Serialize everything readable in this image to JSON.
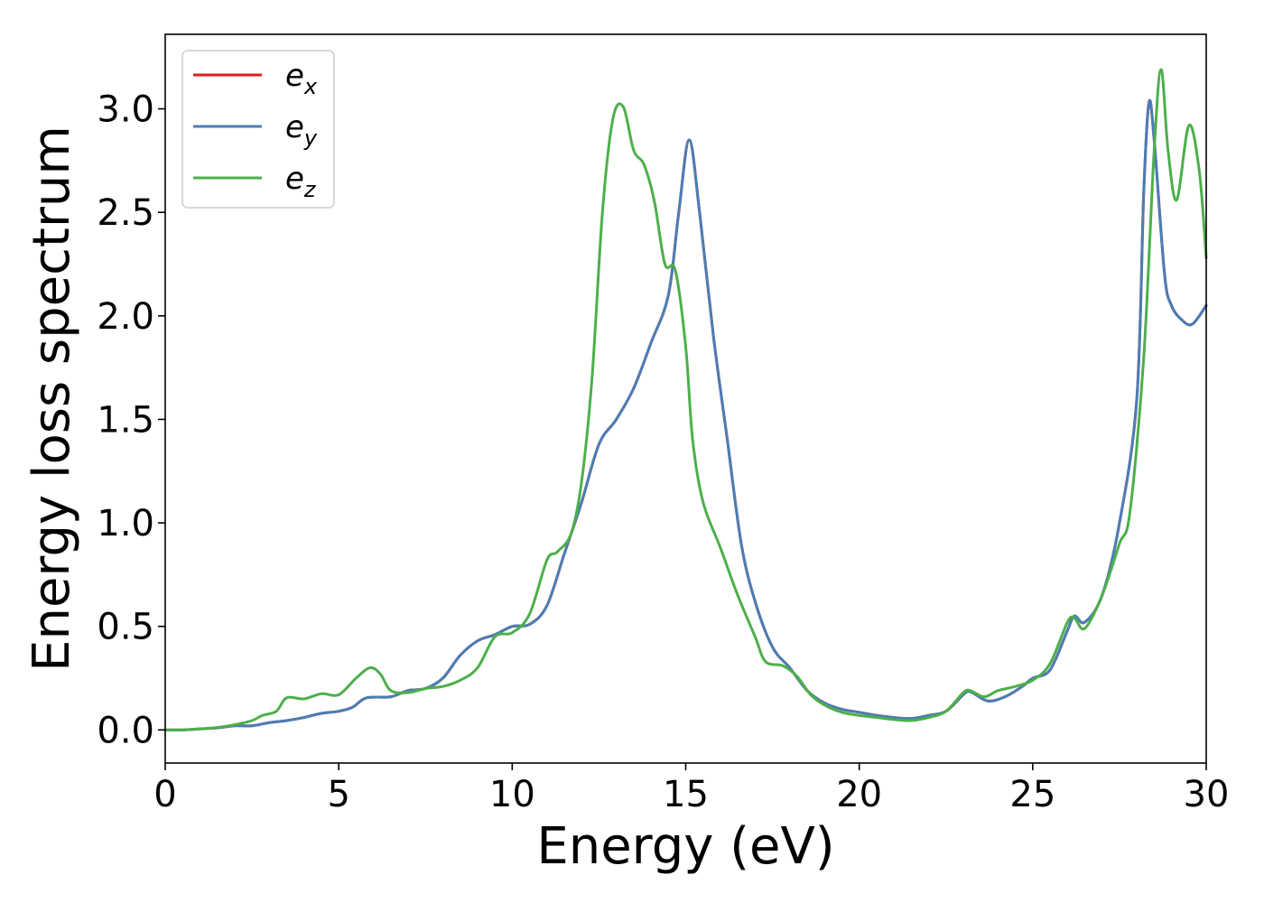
{
  "chart_data": {
    "type": "line",
    "title": "",
    "xlabel": "Energy (eV)",
    "ylabel": "Energy loss spectrum",
    "xlim": [
      0,
      30
    ],
    "ylim": [
      -0.16,
      3.36
    ],
    "xticks": [
      0,
      5,
      10,
      15,
      20,
      25,
      30
    ],
    "xtick_labels": [
      "0",
      "5",
      "10",
      "15",
      "20",
      "25",
      "30"
    ],
    "yticks": [
      0.0,
      0.5,
      1.0,
      1.5,
      2.0,
      2.5,
      3.0
    ],
    "ytick_labels": [
      "0.0",
      "0.5",
      "1.0",
      "1.5",
      "2.0",
      "2.5",
      "3.0"
    ],
    "grid": false,
    "legend_position": "top-left",
    "series": [
      {
        "name": "e_x",
        "legend_base": "e",
        "legend_sub": "x",
        "color": "#e41a1c",
        "points": [
          [
            0,
            0.0
          ],
          [
            0.5,
            0.0
          ],
          [
            1,
            0.005
          ],
          [
            1.5,
            0.01
          ],
          [
            2,
            0.02
          ],
          [
            2.5,
            0.02
          ],
          [
            3,
            0.035
          ],
          [
            3.5,
            0.045
          ],
          [
            4,
            0.06
          ],
          [
            4.5,
            0.08
          ],
          [
            5,
            0.09
          ],
          [
            5.4,
            0.11
          ],
          [
            5.8,
            0.155
          ],
          [
            6.5,
            0.16
          ],
          [
            7,
            0.19
          ],
          [
            7.5,
            0.2
          ],
          [
            8,
            0.25
          ],
          [
            8.5,
            0.36
          ],
          [
            9,
            0.43
          ],
          [
            9.5,
            0.46
          ],
          [
            10,
            0.5
          ],
          [
            10.5,
            0.51
          ],
          [
            11,
            0.6
          ],
          [
            11.5,
            0.85
          ],
          [
            12,
            1.1
          ],
          [
            12.5,
            1.38
          ],
          [
            13,
            1.5
          ],
          [
            13.5,
            1.65
          ],
          [
            14,
            1.87
          ],
          [
            14.5,
            2.1
          ],
          [
            14.8,
            2.5
          ],
          [
            15.1,
            2.85
          ],
          [
            15.4,
            2.5
          ],
          [
            15.8,
            1.9
          ],
          [
            16.2,
            1.4
          ],
          [
            16.6,
            0.9
          ],
          [
            17,
            0.62
          ],
          [
            17.5,
            0.4
          ],
          [
            18,
            0.3
          ],
          [
            18.5,
            0.19
          ],
          [
            19,
            0.13
          ],
          [
            19.5,
            0.1
          ],
          [
            20,
            0.085
          ],
          [
            20.5,
            0.07
          ],
          [
            21,
            0.06
          ],
          [
            21.5,
            0.055
          ],
          [
            22,
            0.07
          ],
          [
            22.5,
            0.09
          ],
          [
            23,
            0.17
          ],
          [
            23.2,
            0.185
          ],
          [
            23.7,
            0.14
          ],
          [
            24.2,
            0.16
          ],
          [
            24.7,
            0.21
          ],
          [
            25,
            0.25
          ],
          [
            25.5,
            0.29
          ],
          [
            26,
            0.48
          ],
          [
            26.2,
            0.55
          ],
          [
            26.5,
            0.52
          ],
          [
            27,
            0.65
          ],
          [
            27.5,
            1.0
          ],
          [
            28,
            1.6
          ],
          [
            28.2,
            2.6
          ],
          [
            28.35,
            3.03
          ],
          [
            28.5,
            2.85
          ],
          [
            28.8,
            2.2
          ],
          [
            29,
            2.05
          ],
          [
            29.3,
            1.98
          ],
          [
            29.6,
            1.96
          ],
          [
            30,
            2.05
          ]
        ]
      },
      {
        "name": "e_y",
        "legend_base": "e",
        "legend_sub": "y",
        "color": "#4a7eb5",
        "points": [
          [
            0,
            0.0
          ],
          [
            0.5,
            0.0
          ],
          [
            1,
            0.005
          ],
          [
            1.5,
            0.01
          ],
          [
            2,
            0.02
          ],
          [
            2.5,
            0.02
          ],
          [
            3,
            0.035
          ],
          [
            3.5,
            0.045
          ],
          [
            4,
            0.06
          ],
          [
            4.5,
            0.08
          ],
          [
            5,
            0.09
          ],
          [
            5.4,
            0.11
          ],
          [
            5.8,
            0.155
          ],
          [
            6.5,
            0.16
          ],
          [
            7,
            0.19
          ],
          [
            7.5,
            0.2
          ],
          [
            8,
            0.25
          ],
          [
            8.5,
            0.36
          ],
          [
            9,
            0.43
          ],
          [
            9.5,
            0.46
          ],
          [
            10,
            0.5
          ],
          [
            10.5,
            0.51
          ],
          [
            11,
            0.6
          ],
          [
            11.5,
            0.85
          ],
          [
            12,
            1.1
          ],
          [
            12.5,
            1.38
          ],
          [
            13,
            1.5
          ],
          [
            13.5,
            1.65
          ],
          [
            14,
            1.87
          ],
          [
            14.5,
            2.1
          ],
          [
            14.8,
            2.5
          ],
          [
            15.1,
            2.85
          ],
          [
            15.4,
            2.5
          ],
          [
            15.8,
            1.9
          ],
          [
            16.2,
            1.4
          ],
          [
            16.6,
            0.9
          ],
          [
            17,
            0.62
          ],
          [
            17.5,
            0.4
          ],
          [
            18,
            0.3
          ],
          [
            18.5,
            0.19
          ],
          [
            19,
            0.13
          ],
          [
            19.5,
            0.1
          ],
          [
            20,
            0.085
          ],
          [
            20.5,
            0.07
          ],
          [
            21,
            0.06
          ],
          [
            21.5,
            0.055
          ],
          [
            22,
            0.07
          ],
          [
            22.5,
            0.09
          ],
          [
            23,
            0.17
          ],
          [
            23.2,
            0.185
          ],
          [
            23.7,
            0.14
          ],
          [
            24.2,
            0.16
          ],
          [
            24.7,
            0.21
          ],
          [
            25,
            0.25
          ],
          [
            25.5,
            0.29
          ],
          [
            26,
            0.48
          ],
          [
            26.2,
            0.55
          ],
          [
            26.5,
            0.52
          ],
          [
            27,
            0.65
          ],
          [
            27.5,
            1.0
          ],
          [
            28,
            1.6
          ],
          [
            28.2,
            2.6
          ],
          [
            28.35,
            3.03
          ],
          [
            28.5,
            2.85
          ],
          [
            28.8,
            2.2
          ],
          [
            29,
            2.05
          ],
          [
            29.3,
            1.98
          ],
          [
            29.6,
            1.96
          ],
          [
            30,
            2.05
          ]
        ]
      },
      {
        "name": "e_z",
        "legend_base": "e",
        "legend_sub": "z",
        "color": "#4daf4a",
        "points": [
          [
            0,
            0.0
          ],
          [
            0.5,
            0.0
          ],
          [
            1,
            0.005
          ],
          [
            1.5,
            0.012
          ],
          [
            2,
            0.025
          ],
          [
            2.5,
            0.045
          ],
          [
            2.8,
            0.07
          ],
          [
            3.2,
            0.09
          ],
          [
            3.5,
            0.155
          ],
          [
            4,
            0.15
          ],
          [
            4.5,
            0.175
          ],
          [
            5,
            0.17
          ],
          [
            5.5,
            0.25
          ],
          [
            5.9,
            0.3
          ],
          [
            6.2,
            0.27
          ],
          [
            6.5,
            0.19
          ],
          [
            7,
            0.18
          ],
          [
            7.5,
            0.2
          ],
          [
            8,
            0.21
          ],
          [
            8.5,
            0.24
          ],
          [
            9,
            0.3
          ],
          [
            9.5,
            0.45
          ],
          [
            10,
            0.47
          ],
          [
            10.5,
            0.56
          ],
          [
            11,
            0.82
          ],
          [
            11.3,
            0.86
          ],
          [
            11.7,
            0.95
          ],
          [
            12,
            1.2
          ],
          [
            12.3,
            1.7
          ],
          [
            12.6,
            2.5
          ],
          [
            12.9,
            2.95
          ],
          [
            13.2,
            3.01
          ],
          [
            13.5,
            2.8
          ],
          [
            13.8,
            2.73
          ],
          [
            14.1,
            2.55
          ],
          [
            14.4,
            2.25
          ],
          [
            14.7,
            2.22
          ],
          [
            15,
            1.85
          ],
          [
            15.2,
            1.4
          ],
          [
            15.5,
            1.1
          ],
          [
            16,
            0.88
          ],
          [
            16.5,
            0.65
          ],
          [
            17,
            0.45
          ],
          [
            17.3,
            0.33
          ],
          [
            17.8,
            0.31
          ],
          [
            18.2,
            0.26
          ],
          [
            18.6,
            0.17
          ],
          [
            19,
            0.12
          ],
          [
            19.5,
            0.085
          ],
          [
            20,
            0.07
          ],
          [
            20.5,
            0.06
          ],
          [
            21,
            0.05
          ],
          [
            21.5,
            0.045
          ],
          [
            22,
            0.06
          ],
          [
            22.5,
            0.09
          ],
          [
            23,
            0.18
          ],
          [
            23.2,
            0.19
          ],
          [
            23.6,
            0.16
          ],
          [
            24,
            0.19
          ],
          [
            24.5,
            0.21
          ],
          [
            25,
            0.24
          ],
          [
            25.5,
            0.32
          ],
          [
            26,
            0.52
          ],
          [
            26.2,
            0.54
          ],
          [
            26.5,
            0.49
          ],
          [
            27,
            0.65
          ],
          [
            27.5,
            0.9
          ],
          [
            27.8,
            1.05
          ],
          [
            28.2,
            1.8
          ],
          [
            28.5,
            2.8
          ],
          [
            28.7,
            3.19
          ],
          [
            28.9,
            2.8
          ],
          [
            29.15,
            2.56
          ],
          [
            29.5,
            2.92
          ],
          [
            29.8,
            2.7
          ],
          [
            30,
            2.28
          ]
        ]
      }
    ]
  }
}
